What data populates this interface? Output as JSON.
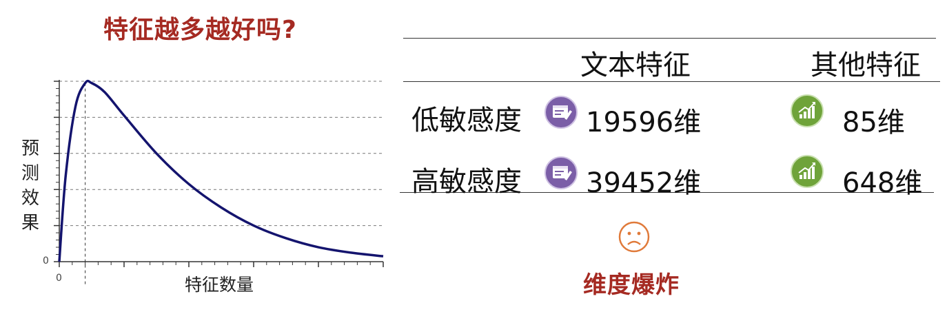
{
  "title": "特征越多越好吗?",
  "axes": {
    "y_label_chars": [
      "预",
      "测",
      "效",
      "果"
    ],
    "x_label": "特征数量",
    "y_zero": "0",
    "x_zero": "0"
  },
  "chart_data": {
    "type": "line",
    "xlabel": "特征数量",
    "ylabel": "预测效果",
    "x": [
      0,
      2,
      5,
      8,
      10,
      14,
      20,
      30,
      40,
      50,
      60,
      70,
      80,
      90,
      100
    ],
    "series": [
      {
        "values": [
          0,
          48,
          86,
          99,
          99,
          94,
          81,
          60,
          43,
          30,
          20,
          13,
          8,
          5,
          3
        ]
      }
    ],
    "xlim": [
      0,
      100
    ],
    "ylim": [
      0,
      100
    ],
    "grid": "horizontal dashed",
    "peak_marker": "vertical dashed line at peak"
  },
  "table": {
    "headers": [
      "文本特征",
      "其他特征"
    ],
    "rows": [
      {
        "label": "低敏感度",
        "text_value": "19596维",
        "other_value": "85维"
      },
      {
        "label": "高敏感度",
        "text_value": "39452维",
        "other_value": "648维"
      }
    ]
  },
  "conclusion": "维度爆炸",
  "colors": {
    "accent_red": "#a52a22",
    "curve": "#14146e",
    "text_icon": "#7b5ea7",
    "other_icon": "#6fa33a",
    "frown": "#e07a3a"
  }
}
